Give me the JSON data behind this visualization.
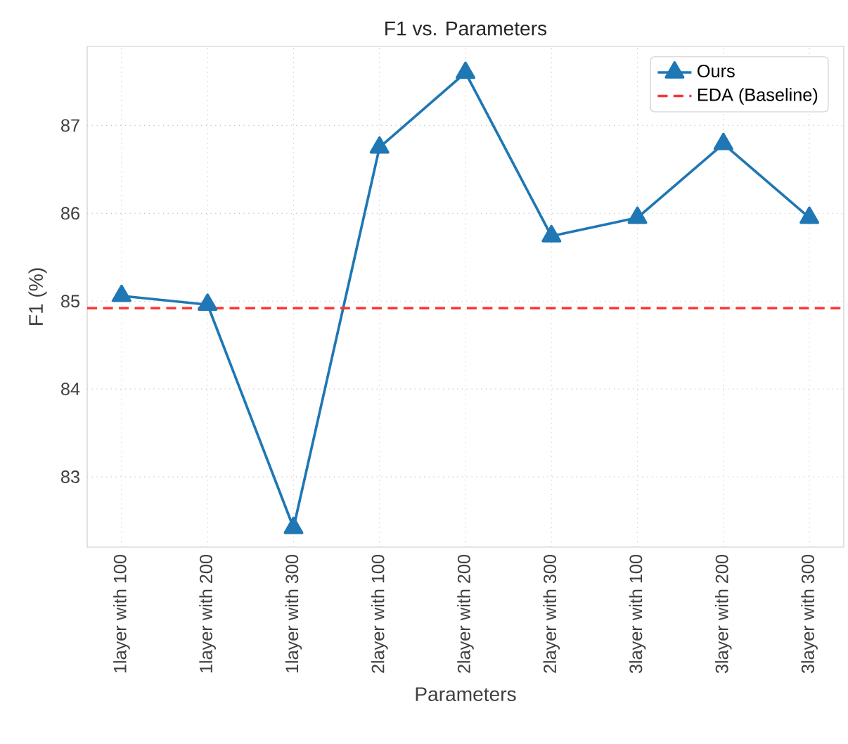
{
  "chart_data": {
    "type": "line",
    "title": "F1 vs. Parameters",
    "xlabel": "Parameters",
    "ylabel": "F1 (%)",
    "categories": [
      "1layer with 100",
      "1layer with 200",
      "1layer with 300",
      "2layer with 100",
      "2layer with 200",
      "2layer with 300",
      "3layer with 100",
      "3layer with 200",
      "3layer with 300"
    ],
    "series": [
      {
        "name": "Ours",
        "color": "#1f77b4",
        "values": [
          85.06,
          84.96,
          82.42,
          86.75,
          87.6,
          85.74,
          85.95,
          86.79,
          85.95
        ]
      }
    ],
    "ref_lines": [
      {
        "axis": "y",
        "value": 84.92,
        "label": "EDA (Baseline)",
        "color": "#ff3333",
        "line_style": "dashed"
      }
    ],
    "ylim": [
      82.2,
      87.9
    ],
    "yticks": [
      83,
      84,
      85,
      86,
      87
    ],
    "grid": true,
    "legend": "top right",
    "marker": "triangle",
    "line_style": "solid"
  }
}
